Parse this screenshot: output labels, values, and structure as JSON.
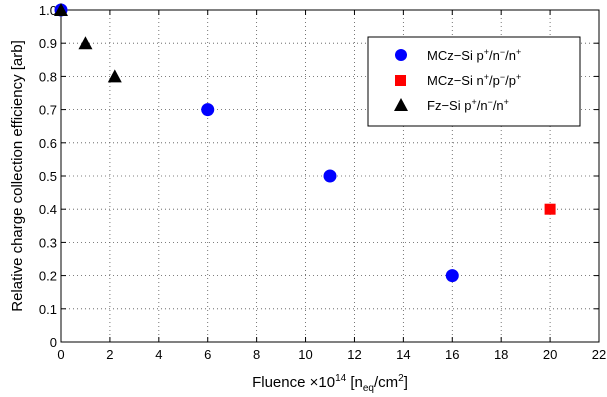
{
  "chart_data": {
    "type": "scatter",
    "xlabel": {
      "prefix": "Fluence ×10",
      "exp": "14",
      "unit_open": " [n",
      "unit_sub": "eq",
      "unit_mid": "/cm",
      "unit_sup": "2",
      "unit_close": "]"
    },
    "ylabel": "Relative charge collection efficiency [arb]",
    "xlim": [
      0,
      22
    ],
    "ylim": [
      0,
      1.0
    ],
    "xticks": [
      0,
      2,
      4,
      6,
      8,
      10,
      12,
      14,
      16,
      18,
      20,
      22
    ],
    "yticks": [
      0,
      0.1,
      0.2,
      0.3,
      0.4,
      0.5,
      0.6,
      0.7,
      0.8,
      0.9,
      1.0
    ],
    "ytick_labels": [
      "0",
      "0.1",
      "0.2",
      "0.3",
      "0.4",
      "0.5",
      "0.6",
      "0.7",
      "0.8",
      "0.9",
      "1.0"
    ],
    "grid": true,
    "legend_position": "top-right",
    "series": [
      {
        "name": {
          "base": "MCz−Si p",
          "s1": "+",
          "m1": "/n",
          "s2": "−",
          "m2": "/n",
          "s3": "+"
        },
        "marker": "circle",
        "color": "#0000ff",
        "points": [
          [
            0,
            1.0
          ],
          [
            6,
            0.7
          ],
          [
            11,
            0.5
          ],
          [
            16,
            0.2
          ]
        ]
      },
      {
        "name": {
          "base": "MCz−Si n",
          "s1": "+",
          "m1": "/p",
          "s2": "−",
          "m2": "/p",
          "s3": "+"
        },
        "marker": "square",
        "color": "#ff0000",
        "points": [
          [
            20,
            0.4
          ]
        ]
      },
      {
        "name": {
          "base": "Fz−Si p",
          "s1": "+",
          "m1": "/n",
          "s2": "−",
          "m2": "/n",
          "s3": "+"
        },
        "marker": "triangle",
        "color": "#000000",
        "points": [
          [
            0,
            1.0
          ],
          [
            1,
            0.9
          ],
          [
            2.2,
            0.8
          ]
        ]
      }
    ]
  }
}
